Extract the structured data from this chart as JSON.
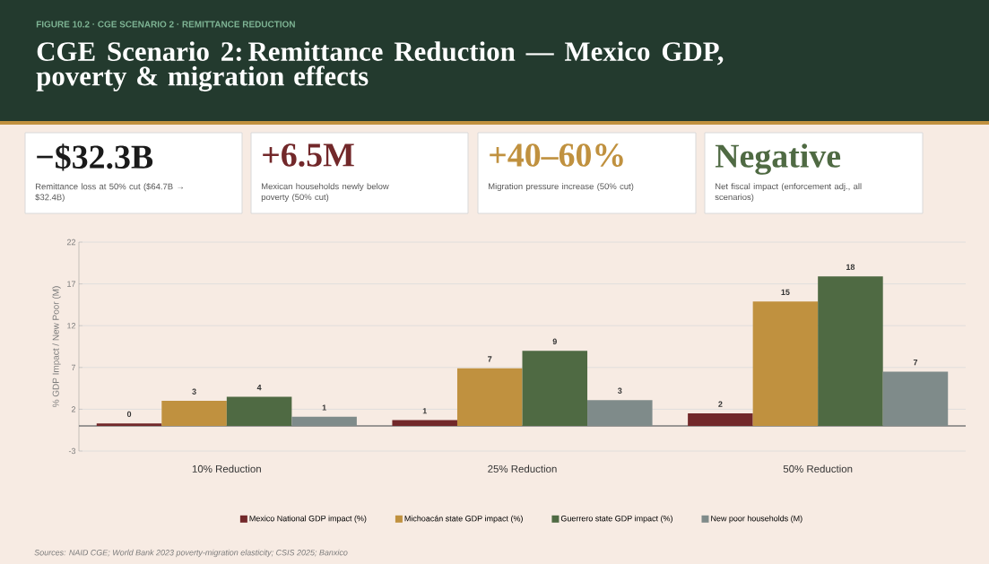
{
  "chart_data": {
    "type": "bar",
    "subtitle": "FIGURE 10.2  ·  CGE SCENARIO 2  ·  REMITTANCE REDUCTION",
    "title": "CGE Scenario 2: Remittance Reduction — Mexico GDP, poverty & migration effects",
    "ylabel": "% GDP Impact  /  New Poor (M)",
    "categories": [
      "10% Reduction",
      "25% Reduction",
      "50% Reduction"
    ],
    "series": [
      {
        "name": "Mexico National GDP impact (%)",
        "color": "#72282a",
        "values": [
          0.3,
          0.7,
          1.5
        ],
        "value_labels": [
          "0",
          "1",
          "2"
        ]
      },
      {
        "name": "Michoacán state GDP impact (%)",
        "color": "#c0913f",
        "values": [
          3.0,
          6.9,
          14.9
        ],
        "value_labels": [
          "3",
          "7",
          "15"
        ]
      },
      {
        "name": "Guerrero state GDP impact (%)",
        "color": "#4f6a43",
        "values": [
          3.5,
          9.0,
          17.9
        ],
        "value_labels": [
          "4",
          "9",
          "18"
        ]
      },
      {
        "name": "New poor households (M)",
        "color": "#7f8b8a",
        "values": [
          1.1,
          3.1,
          6.5
        ],
        "value_labels": [
          "1",
          "3",
          "7"
        ]
      }
    ],
    "ylim": [
      -3,
      22
    ],
    "yticks": [
      -3,
      2,
      7,
      12,
      17,
      22
    ],
    "grid": "y",
    "legend": "bottom",
    "annotations": [
      "−$32.3B",
      "Remittance loss at 50% cut ($64.7B → $32.4B)",
      "+6.5M",
      "Mexican households newly below poverty (50% cut)",
      "+40–60%",
      "Migration pressure increase (50% cut)",
      "Negative",
      "Net fiscal impact (enforcement adj., all scenarios)",
      "Sources: NAID CGE; World Bank 2023 poverty-migration elasticity; CSIS 2025; Banxico"
    ]
  }
}
